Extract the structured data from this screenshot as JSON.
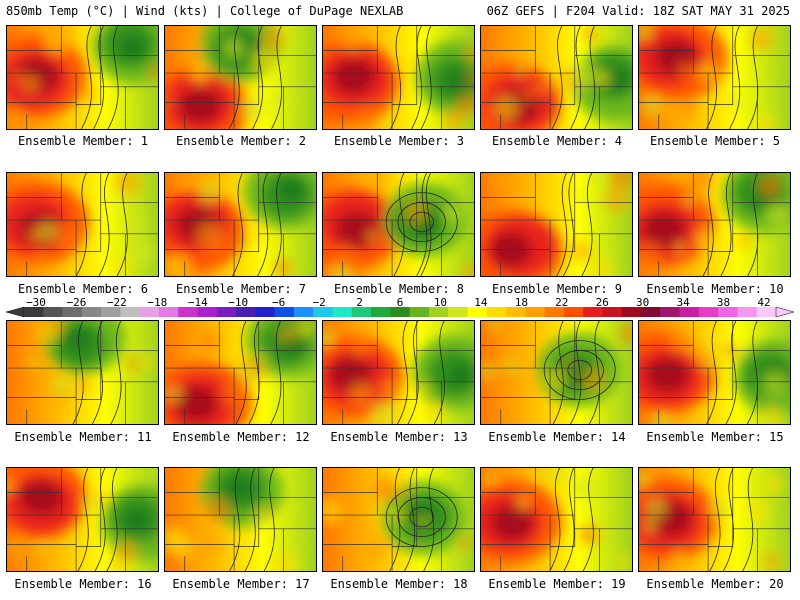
{
  "header": {
    "left": "850mb Temp (°C) | Wind (kts) | College of DuPage NEXLAB",
    "right": "06Z GEFS | F204 Valid: 18Z SAT MAY 31 2025"
  },
  "members": [
    {
      "label": "Ensemble Member: 1",
      "hot": "w",
      "green": "ne"
    },
    {
      "label": "Ensemble Member: 2",
      "hot": "sw",
      "green": "n"
    },
    {
      "label": "Ensemble Member: 3",
      "hot": "w",
      "green": "e"
    },
    {
      "label": "Ensemble Member: 4",
      "hot": "sw",
      "green": "e"
    },
    {
      "label": "Ensemble Member: 5",
      "hot": "nw",
      "green": "none"
    },
    {
      "label": "Ensemble Member: 6",
      "hot": "w",
      "green": "none"
    },
    {
      "label": "Ensemble Member: 7",
      "hot": "w",
      "green": "ne"
    },
    {
      "label": "Ensemble Member: 8",
      "hot": "w",
      "green": "center"
    },
    {
      "label": "Ensemble Member: 9",
      "hot": "sw",
      "green": "none"
    },
    {
      "label": "Ensemble Member: 10",
      "hot": "w",
      "green": "ne"
    },
    {
      "label": "Ensemble Member: 11",
      "hot": "none",
      "green": "n"
    },
    {
      "label": "Ensemble Member: 12",
      "hot": "sw",
      "green": "ne"
    },
    {
      "label": "Ensemble Member: 13",
      "hot": "w",
      "green": "e"
    },
    {
      "label": "Ensemble Member: 14",
      "hot": "none",
      "green": "center"
    },
    {
      "label": "Ensemble Member: 15",
      "hot": "w",
      "green": "e"
    },
    {
      "label": "Ensemble Member: 16",
      "hot": "nw",
      "green": "e"
    },
    {
      "label": "Ensemble Member: 17",
      "hot": "none",
      "green": "n"
    },
    {
      "label": "Ensemble Member: 18",
      "hot": "none",
      "green": "center"
    },
    {
      "label": "Ensemble Member: 19",
      "hot": "w",
      "green": "none"
    },
    {
      "label": "Ensemble Member: 20",
      "hot": "w",
      "green": "none"
    }
  ],
  "colorbar": {
    "labels": [
      "-30",
      "-26",
      "-22",
      "-18",
      "-14",
      "-10",
      "-6",
      "-2",
      "2",
      "6",
      "10",
      "14",
      "18",
      "22",
      "26",
      "30",
      "34",
      "38",
      "42"
    ],
    "colors": [
      "#3a3a3a",
      "#555555",
      "#6e6e6e",
      "#888888",
      "#a0a0a0",
      "#bebebe",
      "#e6a0e6",
      "#e678e6",
      "#cc33cc",
      "#aa22cc",
      "#7a1fbf",
      "#4b1fb0",
      "#2222cc",
      "#1050e6",
      "#1e90ff",
      "#1ec8e6",
      "#1ee6c8",
      "#1ec878",
      "#1eaa3c",
      "#2c8c1e",
      "#64b41e",
      "#a0d21e",
      "#d2e61e",
      "#ffff00",
      "#ffdc00",
      "#ffbe00",
      "#ffa000",
      "#ff7800",
      "#ff5000",
      "#e61e1e",
      "#c8141e",
      "#a00a1e",
      "#820a32",
      "#a0146e",
      "#c81ea0",
      "#e63cc8",
      "#f064e6",
      "#f596f0",
      "#fac8fa"
    ],
    "tick_min": -30,
    "tick_max": 42
  }
}
